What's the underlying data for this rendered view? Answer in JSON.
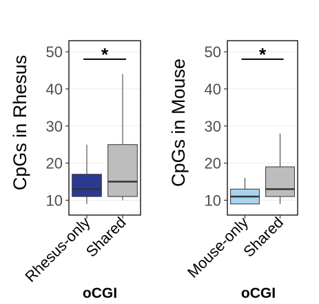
{
  "chart_data": [
    {
      "type": "box",
      "ylabel": "CpGs in Rhesus",
      "xlabel": "oCGI",
      "ylim": [
        6,
        53
      ],
      "yticks": [
        10,
        20,
        30,
        40,
        50
      ],
      "grid": "horizontal",
      "categories": [
        "Rhesus-only",
        "Shared"
      ],
      "boxes": [
        {
          "category": "Rhesus-only",
          "whisker_low": 9,
          "q1": 11,
          "median": 13,
          "q3": 17,
          "whisker_high": 25,
          "color": "#2b3990"
        },
        {
          "category": "Shared",
          "whisker_low": 10,
          "q1": 11,
          "median": 15,
          "q3": 25,
          "whisker_high": 44,
          "color": "#bdbdbd"
        }
      ],
      "significance": {
        "label": "*",
        "y": 48
      }
    },
    {
      "type": "box",
      "ylabel": "CpGs in Mouse",
      "xlabel": "oCGI",
      "ylim": [
        6,
        53
      ],
      "yticks": [
        10,
        20,
        30,
        40,
        50
      ],
      "grid": "horizontal",
      "categories": [
        "Mouse-only",
        "Shared"
      ],
      "boxes": [
        {
          "category": "Mouse-only",
          "whisker_low": 9,
          "q1": 9,
          "median": 11,
          "q3": 13,
          "whisker_high": 16,
          "color": "#a6d4ee"
        },
        {
          "category": "Shared",
          "whisker_low": 9,
          "q1": 11,
          "median": 13,
          "q3": 19,
          "whisker_high": 28,
          "color": "#bdbdbd"
        }
      ],
      "significance": {
        "label": "*",
        "y": 48
      }
    }
  ]
}
